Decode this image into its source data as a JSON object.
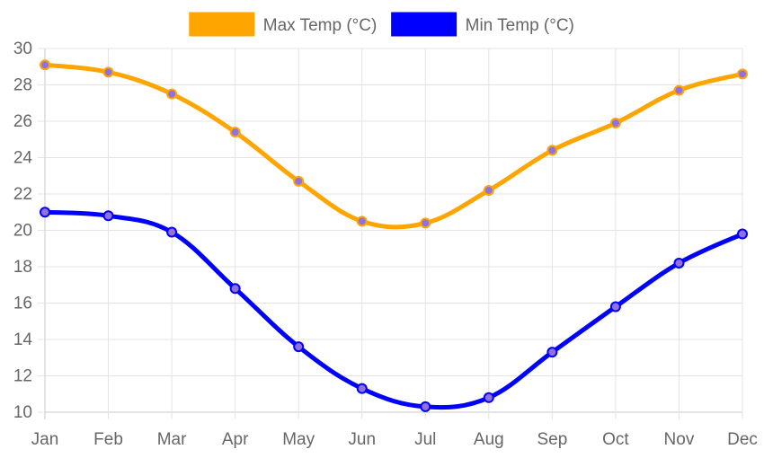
{
  "chart_data": {
    "type": "line",
    "categories": [
      "Jan",
      "Feb",
      "Mar",
      "Apr",
      "May",
      "Jun",
      "Jul",
      "Aug",
      "Sep",
      "Oct",
      "Nov",
      "Dec"
    ],
    "series": [
      {
        "name": "Max Temp (°C)",
        "color": "#FFA500",
        "values": [
          29.1,
          28.7,
          27.5,
          25.4,
          22.7,
          20.5,
          20.4,
          22.2,
          24.4,
          25.9,
          27.7,
          28.6
        ]
      },
      {
        "name": "Min Temp (°C)",
        "color": "#0000FF",
        "values": [
          21.0,
          20.8,
          19.9,
          16.8,
          13.6,
          11.3,
          10.3,
          10.8,
          13.3,
          15.8,
          18.2,
          19.8
        ]
      }
    ],
    "ylim": [
      10,
      30
    ],
    "yticks": [
      10,
      12,
      14,
      16,
      18,
      20,
      22,
      24,
      26,
      28,
      30
    ],
    "grid": true,
    "legend": "top-center",
    "point_color": "#9370DB"
  }
}
